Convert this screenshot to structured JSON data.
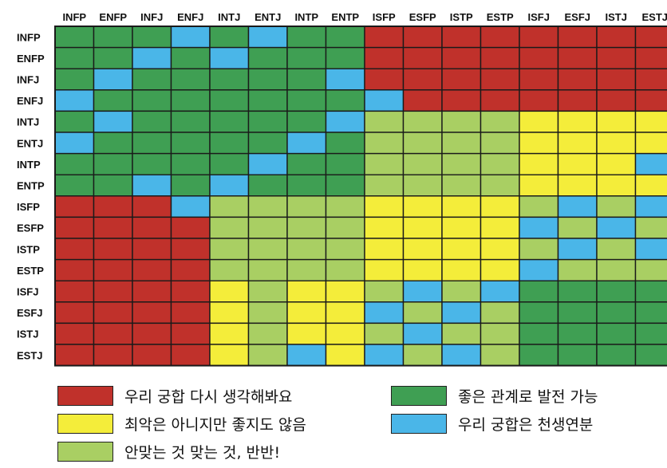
{
  "chart_data": {
    "type": "heatmap",
    "title": "",
    "columns": [
      "INFP",
      "ENFP",
      "INFJ",
      "ENFJ",
      "INTJ",
      "ENTJ",
      "INTP",
      "ENTP",
      "ISFP",
      "ESFP",
      "ISTP",
      "ESTP",
      "ISFJ",
      "ESFJ",
      "ISTJ",
      "ESTJ"
    ],
    "rows": [
      "INFP",
      "ENFP",
      "INFJ",
      "ENFJ",
      "INTJ",
      "ENTJ",
      "INTP",
      "ENTP",
      "ISFP",
      "ESFP",
      "ISTP",
      "ESTP",
      "ISFJ",
      "ESFJ",
      "ISTJ",
      "ESTJ"
    ],
    "categories": {
      "R": {
        "label": "우리 궁합 다시 생각해봐요",
        "color": "#c0312b"
      },
      "Y": {
        "label": "최악은 아니지만 좋지도 않음",
        "color": "#f4ed3a"
      },
      "L": {
        "label": "안맞는 것 맞는 것, 반반!",
        "color": "#a9cf63"
      },
      "G": {
        "label": "좋은 관계로 발전 가능",
        "color": "#3f9f53"
      },
      "B": {
        "label": "우리 궁합은 천생연분",
        "color": "#4ab6e8"
      }
    },
    "cells": [
      [
        "G",
        "G",
        "G",
        "B",
        "G",
        "B",
        "G",
        "G",
        "R",
        "R",
        "R",
        "R",
        "R",
        "R",
        "R",
        "R"
      ],
      [
        "G",
        "G",
        "B",
        "G",
        "B",
        "G",
        "G",
        "G",
        "R",
        "R",
        "R",
        "R",
        "R",
        "R",
        "R",
        "R"
      ],
      [
        "G",
        "B",
        "G",
        "G",
        "G",
        "G",
        "G",
        "B",
        "R",
        "R",
        "R",
        "R",
        "R",
        "R",
        "R",
        "R"
      ],
      [
        "B",
        "G",
        "G",
        "G",
        "G",
        "G",
        "G",
        "G",
        "B",
        "R",
        "R",
        "R",
        "R",
        "R",
        "R",
        "R"
      ],
      [
        "G",
        "B",
        "G",
        "G",
        "G",
        "G",
        "G",
        "B",
        "L",
        "L",
        "L",
        "L",
        "Y",
        "Y",
        "Y",
        "Y"
      ],
      [
        "B",
        "G",
        "G",
        "G",
        "G",
        "G",
        "B",
        "G",
        "L",
        "L",
        "L",
        "L",
        "Y",
        "Y",
        "Y",
        "Y"
      ],
      [
        "G",
        "G",
        "G",
        "G",
        "G",
        "B",
        "G",
        "G",
        "L",
        "L",
        "L",
        "L",
        "Y",
        "Y",
        "Y",
        "B"
      ],
      [
        "G",
        "G",
        "B",
        "G",
        "B",
        "G",
        "G",
        "G",
        "L",
        "L",
        "L",
        "L",
        "Y",
        "Y",
        "Y",
        "Y"
      ],
      [
        "R",
        "R",
        "R",
        "B",
        "L",
        "L",
        "L",
        "L",
        "Y",
        "Y",
        "Y",
        "Y",
        "L",
        "B",
        "L",
        "B"
      ],
      [
        "R",
        "R",
        "R",
        "R",
        "L",
        "L",
        "L",
        "L",
        "Y",
        "Y",
        "Y",
        "Y",
        "B",
        "L",
        "B",
        "L"
      ],
      [
        "R",
        "R",
        "R",
        "R",
        "L",
        "L",
        "L",
        "L",
        "Y",
        "Y",
        "Y",
        "Y",
        "L",
        "B",
        "L",
        "B"
      ],
      [
        "R",
        "R",
        "R",
        "R",
        "L",
        "L",
        "L",
        "L",
        "Y",
        "Y",
        "Y",
        "Y",
        "B",
        "L",
        "L",
        "L"
      ],
      [
        "R",
        "R",
        "R",
        "R",
        "Y",
        "L",
        "Y",
        "Y",
        "L",
        "B",
        "L",
        "B",
        "G",
        "G",
        "G",
        "G"
      ],
      [
        "R",
        "R",
        "R",
        "R",
        "Y",
        "L",
        "Y",
        "Y",
        "B",
        "L",
        "B",
        "L",
        "G",
        "G",
        "G",
        "G"
      ],
      [
        "R",
        "R",
        "R",
        "R",
        "Y",
        "L",
        "Y",
        "Y",
        "L",
        "B",
        "L",
        "L",
        "G",
        "G",
        "G",
        "G"
      ],
      [
        "R",
        "R",
        "R",
        "R",
        "Y",
        "L",
        "B",
        "Y",
        "B",
        "L",
        "B",
        "L",
        "G",
        "G",
        "G",
        "G"
      ]
    ]
  },
  "legend": {
    "items": [
      {
        "key": "R",
        "label": "우리 궁합 다시 생각해봐요",
        "color": "#c0312b"
      },
      {
        "key": "G",
        "label": "좋은 관계로 발전 가능",
        "color": "#3f9f53"
      },
      {
        "key": "Y",
        "label": "최악은 아니지만 좋지도 않음",
        "color": "#f4ed3a"
      },
      {
        "key": "B",
        "label": "우리 궁합은 천생연분",
        "color": "#4ab6e8"
      },
      {
        "key": "L",
        "label": "안맞는 것 맞는 것, 반반!",
        "color": "#a9cf63"
      }
    ]
  }
}
